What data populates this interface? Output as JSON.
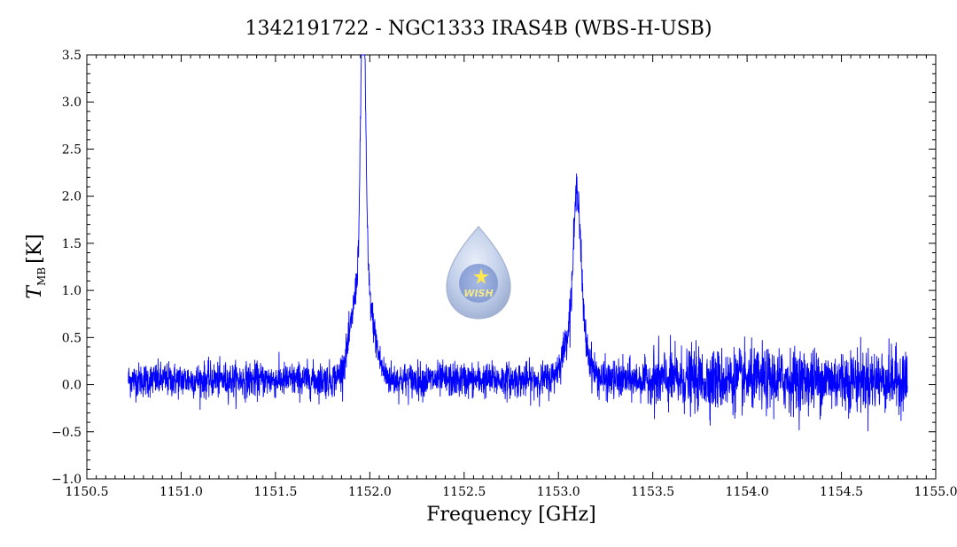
{
  "chart_data": {
    "type": "line",
    "title": "1342191722 - NGC1333 IRAS4B (WBS-H-USB)",
    "xlabel": "Frequency [GHz]",
    "ylabel_main": "T",
    "ylabel_sub": "MB",
    "ylabel_unit": "[K]",
    "xlim": [
      1150.5,
      1155.0
    ],
    "ylim": [
      -1.0,
      3.5
    ],
    "x_ticks": [
      "1150.5",
      "1151.0",
      "1151.5",
      "1152.0",
      "1152.5",
      "1153.0",
      "1153.5",
      "1154.0",
      "1154.5",
      "1155.0"
    ],
    "y_ticks": [
      "−1.0",
      "−0.5",
      "0.0",
      "0.5",
      "1.0",
      "1.5",
      "2.0",
      "2.5",
      "3.0",
      "3.5"
    ],
    "series": [
      {
        "color": "#0000ff",
        "x_range": [
          1150.72,
          1154.85
        ],
        "baseline": 0.05,
        "noise": [
          {
            "x_min": 1150.72,
            "x_max": 1153.05,
            "sigma": 0.09
          },
          {
            "x_min": 1153.05,
            "x_max": 1153.5,
            "sigma": 0.1
          },
          {
            "x_min": 1153.5,
            "x_max": 1154.85,
            "sigma": 0.16
          }
        ],
        "peaks": [
          {
            "center": 1151.965,
            "peak": 3.15,
            "width": 0.012
          },
          {
            "center": 1151.96,
            "peak": 1.2,
            "width": 0.05
          },
          {
            "center": 1153.1,
            "peak": 1.35,
            "width": 0.018
          },
          {
            "center": 1153.09,
            "peak": 0.7,
            "width": 0.05
          }
        ]
      }
    ],
    "grid": false,
    "legend": "none"
  },
  "logo": {
    "text": "WISH",
    "colors": {
      "drop": "#b8c8e6",
      "drop_edge": "#7b8fc0",
      "star": "#ffe94d"
    }
  }
}
